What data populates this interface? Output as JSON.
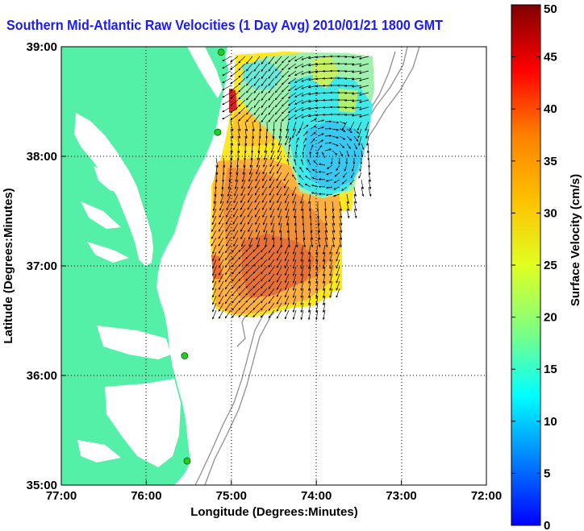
{
  "title": "Southern Mid-Atlantic Raw Velocities (1 Day Avg) 2010/01/21 1800 GMT",
  "x_axis": {
    "label": "Longitude (Degrees:Minutes)",
    "ticks": [
      "77:00",
      "76:00",
      "75:00",
      "74:00",
      "73:00",
      "72:00"
    ]
  },
  "y_axis": {
    "label": "Latitude (Degrees:Minutes)",
    "ticks": [
      "39:00",
      "38:00",
      "37:00",
      "36:00",
      "35:00"
    ]
  },
  "colorbar": {
    "label": "Surface Velocity (cm/s)",
    "ticks": [
      "50",
      "45",
      "40",
      "35",
      "30",
      "25",
      "20",
      "15",
      "10",
      "5",
      "0"
    ],
    "min": 0,
    "max": 50
  },
  "colors": {
    "land": "#55f0a8",
    "title": "#1a1aff",
    "vector": "#000000",
    "bathymetry": "#909090",
    "station": "#22cc22"
  },
  "map_extent": {
    "lon_west": -77,
    "lon_east": -72,
    "lat_south": 35,
    "lat_north": 39
  },
  "stations": [
    {
      "lon": -75.12,
      "lat": 38.95
    },
    {
      "lon": -75.16,
      "lat": 38.22
    },
    {
      "lon": -75.55,
      "lat": 36.18
    },
    {
      "lon": -75.52,
      "lat": 35.22
    }
  ]
}
